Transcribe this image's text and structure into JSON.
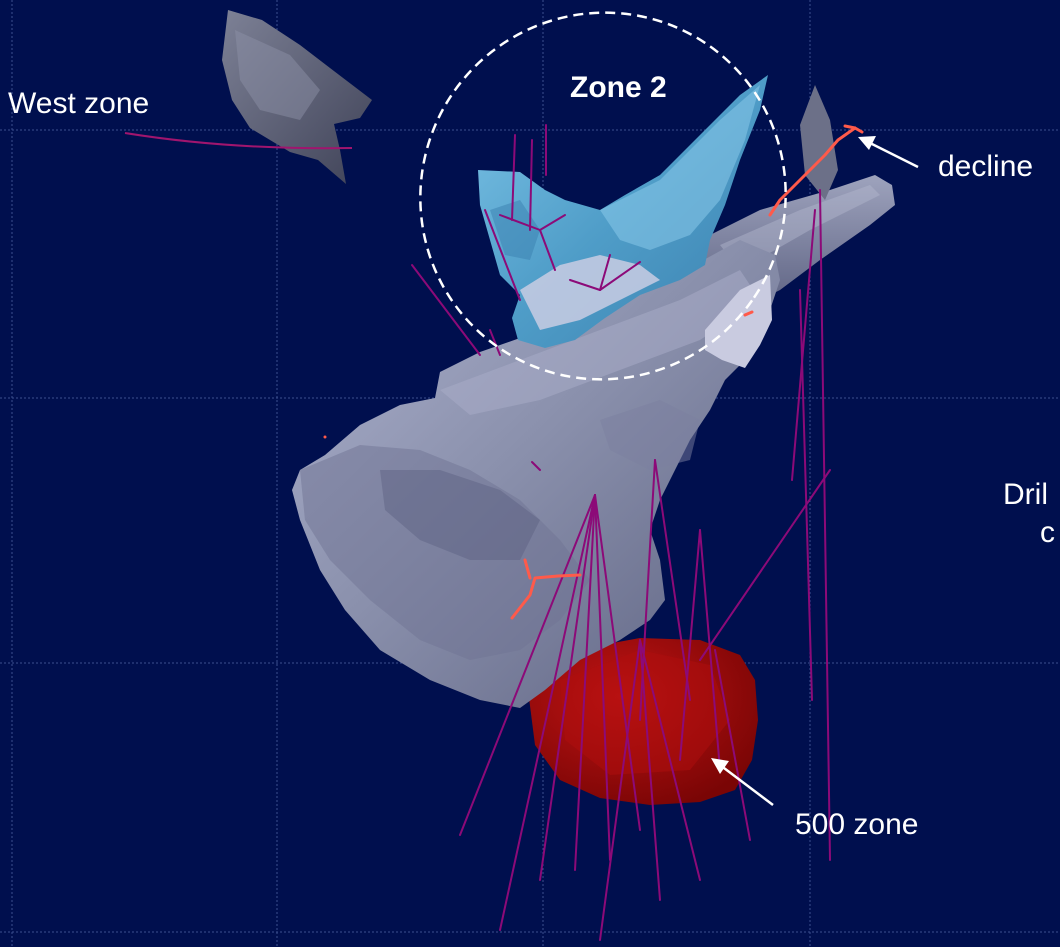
{
  "labels": {
    "west_zone": "West zone",
    "zone2": "Zone 2",
    "decline": "decline",
    "drill_partial_1": "Dril",
    "drill_partial_2": "c",
    "zone500": "500 zone"
  },
  "colors": {
    "background": "#000f4e",
    "grid": "#3b4f8f",
    "host_body": "#8a90ad",
    "zone2_body": "#5ba7cf",
    "zone500_body": "#a00a0a",
    "drill_trace": "#8c0a78",
    "decline_trace": "#ff5a4a",
    "annotation": "#ffffff"
  }
}
